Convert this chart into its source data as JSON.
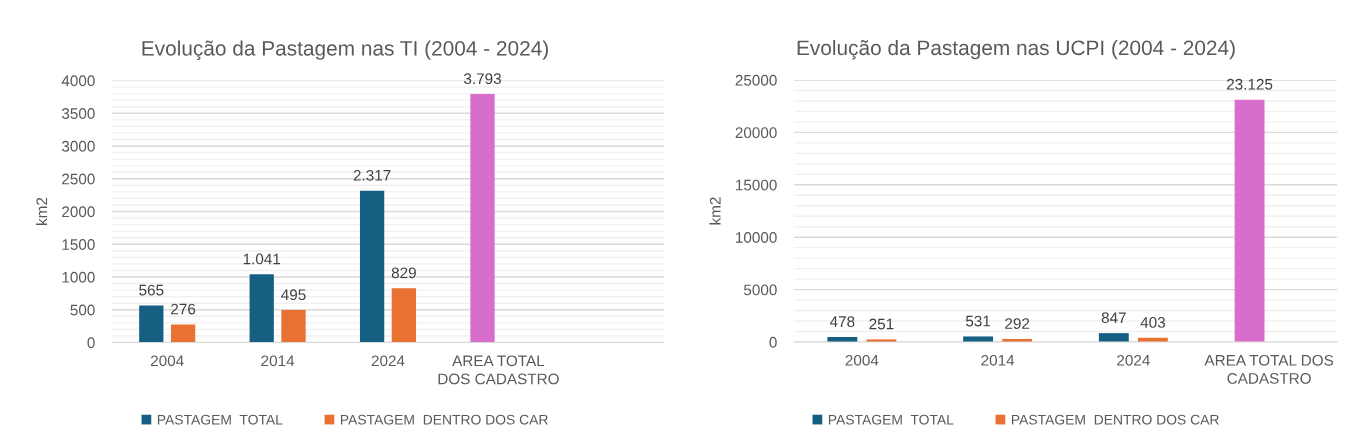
{
  "chart_data": [
    {
      "type": "bar",
      "title": "Evolução da Pastagem nas TI (2004 - 2024)",
      "ylabel": "km2",
      "categories": [
        "2004",
        "2014",
        "2024",
        "AREA TOTAL DOS CADASTRO",
        null
      ],
      "series": [
        {
          "name": "PASTAGEM  TOTAL",
          "color": "#156082",
          "colors": [
            "#156082",
            "#156082",
            "#156082",
            "#d86ecc",
            "#156082"
          ],
          "values": [
            565,
            1041,
            2317,
            3793,
            null
          ],
          "value_labels": [
            "565",
            "1.041",
            "2.317",
            "3.793",
            null
          ]
        },
        {
          "name": "PASTAGEM  DENTRO DOS CAR",
          "color": "#e97132",
          "values": [
            276,
            495,
            829,
            null,
            null
          ],
          "value_labels": [
            "276",
            "495",
            "829",
            null,
            null
          ]
        }
      ],
      "ylim": [
        0,
        4000
      ],
      "yticks": [
        0,
        {
          "value": 100,
          "label": null
        },
        {
          "value": 200,
          "label": null
        },
        {
          "value": 300,
          "label": null
        },
        {
          "value": 400,
          "label": null
        },
        500,
        {
          "value": 600,
          "label": null
        },
        {
          "value": 700,
          "label": null
        },
        {
          "value": 800,
          "label": null
        },
        {
          "value": 900,
          "label": null
        },
        1000,
        {
          "value": 1100,
          "label": null
        },
        {
          "value": 1200,
          "label": null
        },
        {
          "value": 1300,
          "label": null
        },
        {
          "value": 1400,
          "label": null
        },
        1500,
        {
          "value": 1600,
          "label": null
        },
        {
          "value": 1700,
          "label": null
        },
        {
          "value": 1800,
          "label": null
        },
        {
          "value": 1900,
          "label": null
        },
        2000,
        {
          "value": 2100,
          "label": null
        },
        {
          "value": 2200,
          "label": null
        },
        {
          "value": 2300,
          "label": null
        },
        {
          "value": 2400,
          "label": null
        },
        2500,
        {
          "value": 2600,
          "label": null
        },
        {
          "value": 2700,
          "label": null
        },
        {
          "value": 2800,
          "label": null
        },
        {
          "value": 2900,
          "label": null
        },
        3000,
        {
          "value": 3100,
          "label": null
        },
        {
          "value": 3200,
          "label": null
        },
        {
          "value": 3300,
          "label": null
        },
        {
          "value": 3400,
          "label": null
        },
        3500,
        {
          "value": 3600,
          "label": null
        },
        {
          "value": 3700,
          "label": null
        },
        {
          "value": 3800,
          "label": null
        },
        {
          "value": 3900,
          "label": null
        },
        4000
      ],
      "grid": "y",
      "legend": "bottom"
    },
    {
      "type": "bar",
      "title": "Evolução da Pastagem nas UCPI (2004 - 2024)",
      "ylabel": "km2",
      "categories": [
        "2004",
        "2014",
        "2024",
        "AREA TOTAL DOS CADASTRO"
      ],
      "series": [
        {
          "name": "PASTAGEM  TOTAL",
          "color": "#156082",
          "colors": [
            "#156082",
            "#156082",
            "#156082",
            "#d86ecc"
          ],
          "values": [
            478,
            531,
            847,
            23125
          ],
          "value_labels": [
            "478",
            "531",
            "847",
            "23.125"
          ]
        },
        {
          "name": "PASTAGEM  DENTRO DOS CAR",
          "color": "#e97132",
          "values": [
            251,
            292,
            403,
            null
          ],
          "value_labels": [
            "251",
            "292",
            "403",
            null
          ]
        }
      ],
      "ylim": [
        0,
        25000
      ],
      "yticks": [
        0,
        {
          "value": 1000,
          "label": null
        },
        {
          "value": 2000,
          "label": null
        },
        {
          "value": 3000,
          "label": null
        },
        {
          "value": 4000,
          "label": null
        },
        5000,
        {
          "value": 6000,
          "label": null
        },
        {
          "value": 7000,
          "label": null
        },
        {
          "value": 8000,
          "label": null
        },
        {
          "value": 9000,
          "label": null
        },
        10000,
        {
          "value": 11000,
          "label": null
        },
        {
          "value": 12000,
          "label": null
        },
        {
          "value": 13000,
          "label": null
        },
        {
          "value": 14000,
          "label": null
        },
        15000,
        {
          "value": 16000,
          "label": null
        },
        {
          "value": 17000,
          "label": null
        },
        {
          "value": 18000,
          "label": null
        },
        {
          "value": 19000,
          "label": null
        },
        20000,
        {
          "value": 21000,
          "label": null
        },
        {
          "value": 22000,
          "label": null
        },
        {
          "value": 23000,
          "label": null
        },
        {
          "value": 24000,
          "label": null
        },
        25000
      ],
      "grid": "y",
      "legend": "bottom"
    }
  ]
}
